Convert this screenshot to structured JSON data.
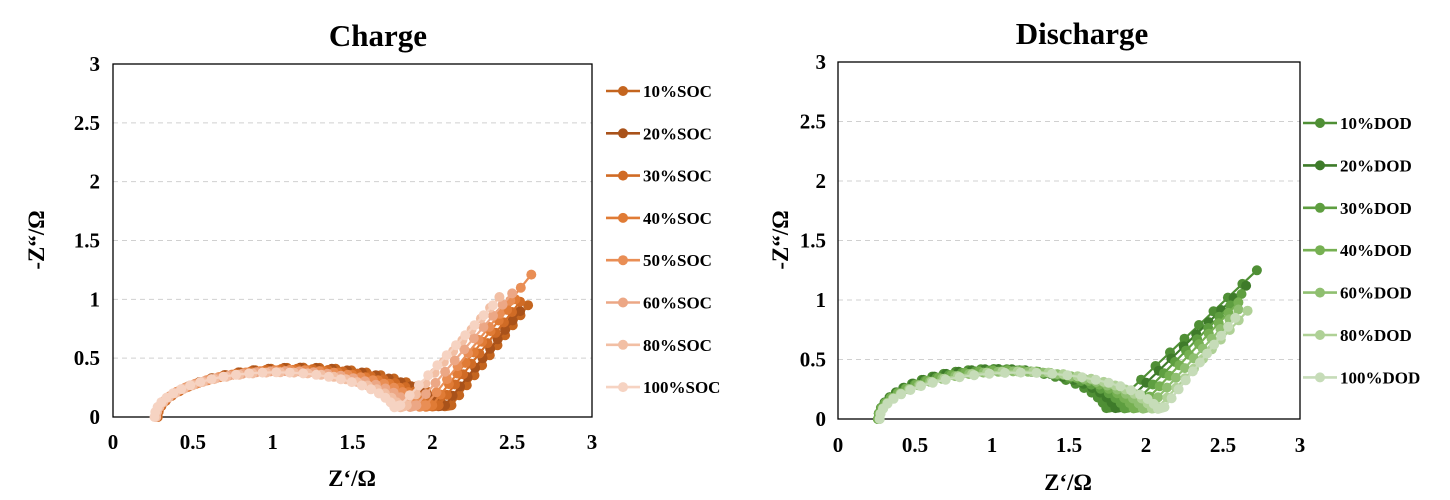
{
  "chart_data": [
    {
      "type": "scatter",
      "title": "Charge",
      "xlabel": "Z‘/Ω",
      "ylabel": "-Z“/Ω",
      "xlim": [
        0,
        3
      ],
      "ylim": [
        0,
        3
      ],
      "xticks": [
        "0",
        "0.5",
        "1",
        "1.5",
        "2",
        "2.5",
        "3"
      ],
      "yticks": [
        "0",
        "0.5",
        "1",
        "1.5",
        "2",
        "2.5",
        "3"
      ],
      "grid": "horizontal dashed",
      "legend_position": "right",
      "series": [
        {
          "name": "10%SOC",
          "color": "#c4651f",
          "r0": 0.28,
          "r1": 2.1,
          "peak": 0.42,
          "tail_end": [
            2.6,
            0.95
          ]
        },
        {
          "name": "20%SOC",
          "color": "#a9521a",
          "r0": 0.28,
          "r1": 2.06,
          "peak": 0.42,
          "tail_end": [
            2.55,
            0.9
          ]
        },
        {
          "name": "30%SOC",
          "color": "#d06b25",
          "r0": 0.28,
          "r1": 2.02,
          "peak": 0.41,
          "tail_end": [
            2.55,
            0.98
          ]
        },
        {
          "name": "40%SOC",
          "color": "#e07b35",
          "r0": 0.27,
          "r1": 1.98,
          "peak": 0.4,
          "tail_end": [
            2.52,
            1.0
          ]
        },
        {
          "name": "50%SOC",
          "color": "#e98e55",
          "r0": 0.27,
          "r1": 1.94,
          "peak": 0.4,
          "tail_end": [
            2.62,
            1.21
          ]
        },
        {
          "name": "60%SOC",
          "color": "#eca785",
          "r0": 0.27,
          "r1": 1.88,
          "peak": 0.39,
          "tail_end": [
            2.5,
            1.05
          ]
        },
        {
          "name": "80%SOC",
          "color": "#f2bfa4",
          "r0": 0.27,
          "r1": 1.82,
          "peak": 0.38,
          "tail_end": [
            2.42,
            1.02
          ]
        },
        {
          "name": "100%SOC",
          "color": "#f6d3c2",
          "r0": 0.26,
          "r1": 1.78,
          "peak": 0.38,
          "tail_end": [
            2.38,
            0.95
          ]
        }
      ]
    },
    {
      "type": "scatter",
      "title": "Discharge",
      "xlabel": "Z‘/Ω",
      "ylabel": "-Z“/Ω",
      "xlim": [
        0,
        3
      ],
      "ylim": [
        0,
        3
      ],
      "xticks": [
        "0",
        "0.5",
        "1",
        "1.5",
        "2",
        "2.5",
        "3"
      ],
      "yticks": [
        "0",
        "0.5",
        "1",
        "1.5",
        "2",
        "2.5",
        "3"
      ],
      "grid": "horizontal dashed",
      "legend_position": "right",
      "series": [
        {
          "name": "10%DOD",
          "color": "#4f8f35",
          "r0": 0.26,
          "r1": 1.76,
          "peak": 0.42,
          "tail_end": [
            2.72,
            1.25
          ]
        },
        {
          "name": "20%DOD",
          "color": "#3e7b2a",
          "r0": 0.26,
          "r1": 1.82,
          "peak": 0.42,
          "tail_end": [
            2.65,
            1.12
          ]
        },
        {
          "name": "30%DOD",
          "color": "#5e9e40",
          "r0": 0.26,
          "r1": 1.88,
          "peak": 0.41,
          "tail_end": [
            2.62,
            1.05
          ]
        },
        {
          "name": "40%DOD",
          "color": "#76b052",
          "r0": 0.26,
          "r1": 1.94,
          "peak": 0.41,
          "tail_end": [
            2.6,
            0.98
          ]
        },
        {
          "name": "60%DOD",
          "color": "#8fbf70",
          "r0": 0.27,
          "r1": 2.0,
          "peak": 0.4,
          "tail_end": [
            2.6,
            0.92
          ]
        },
        {
          "name": "80%DOD",
          "color": "#afd196",
          "r0": 0.27,
          "r1": 2.06,
          "peak": 0.4,
          "tail_end": [
            2.66,
            0.91
          ]
        },
        {
          "name": "100%DOD",
          "color": "#c6dcb8",
          "r0": 0.27,
          "r1": 2.1,
          "peak": 0.39,
          "tail_end": [
            2.58,
            0.85
          ]
        }
      ]
    }
  ]
}
